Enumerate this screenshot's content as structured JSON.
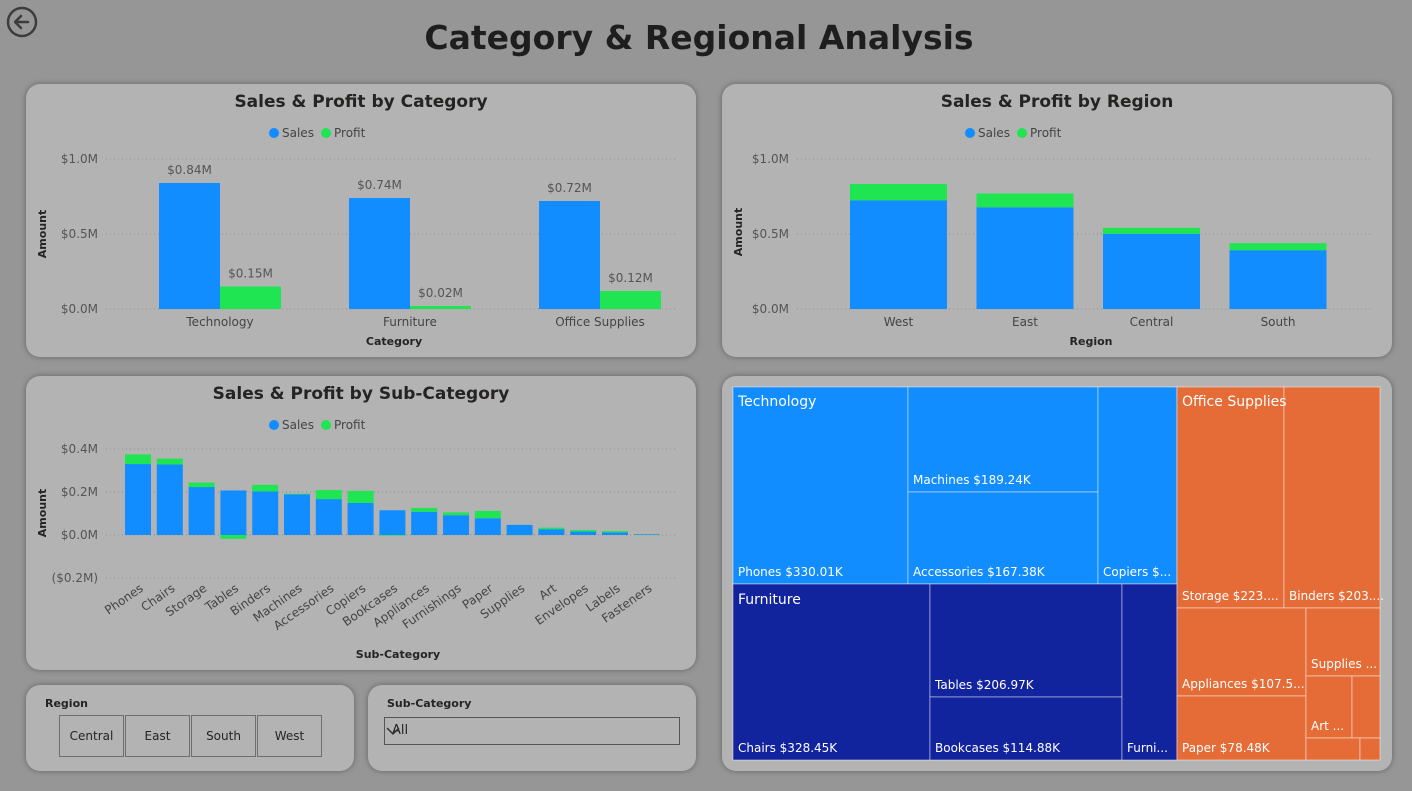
{
  "page": {
    "title": "Category & Regional Analysis"
  },
  "icons": {
    "back": "back-arrow-icon",
    "dropdown": "chevron-down-icon"
  },
  "colors": {
    "sales": "#118dff",
    "profit": "#1fe553",
    "technology": "#118dff",
    "furniture": "#12239e",
    "office_supplies": "#e66c37"
  },
  "legend": {
    "sales": "Sales",
    "profit": "Profit"
  },
  "category_chart": {
    "title": "Sales & Profit by Category",
    "xlabel": "Category",
    "ylabel": "Amount",
    "yticks": [
      "$1.0M",
      "$0.5M",
      "$0.0M"
    ]
  },
  "region_chart": {
    "title": "Sales & Profit by Region",
    "xlabel": "Region",
    "ylabel": "Amount",
    "yticks": [
      "$1.0M",
      "$0.5M",
      "$0.0M"
    ]
  },
  "subcategory_chart": {
    "title": "Sales & Profit by Sub-Category",
    "xlabel": "Sub-Category",
    "ylabel": "Amount",
    "yticks": [
      "$0.4M",
      "$0.2M",
      "$0.0M",
      "($0.2M)"
    ]
  },
  "region_slicer": {
    "title": "Region",
    "options": [
      "Central",
      "East",
      "South",
      "West"
    ]
  },
  "subcategory_slicer": {
    "title": "Sub-Category",
    "value": "All"
  },
  "chart_data": [
    {
      "type": "bar",
      "title": "Sales & Profit by Category",
      "categories": [
        "Technology",
        "Furniture",
        "Office Supplies"
      ],
      "series": [
        {
          "name": "Sales",
          "values": [
            0.84,
            0.74,
            0.72
          ],
          "labels": [
            "$0.84M",
            "$0.74M",
            "$0.72M"
          ]
        },
        {
          "name": "Profit",
          "values": [
            0.15,
            0.02,
            0.12
          ],
          "labels": [
            "$0.15M",
            "$0.02M",
            "$0.12M"
          ]
        }
      ],
      "xlabel": "Category",
      "ylabel": "Amount",
      "ylim": [
        0,
        1.0
      ],
      "unit": "M",
      "grid": true,
      "legend": "top-center"
    },
    {
      "type": "bar",
      "stacked": true,
      "title": "Sales & Profit by Region",
      "categories": [
        "West",
        "East",
        "Central",
        "South"
      ],
      "series": [
        {
          "name": "Sales",
          "values": [
            0.725,
            0.678,
            0.501,
            0.392
          ]
        },
        {
          "name": "Profit",
          "values": [
            0.108,
            0.092,
            0.04,
            0.047
          ]
        }
      ],
      "xlabel": "Region",
      "ylabel": "Amount",
      "ylim": [
        0,
        1.0
      ],
      "unit": "M",
      "grid": true,
      "legend": "top-center"
    },
    {
      "type": "bar",
      "stacked": true,
      "title": "Sales & Profit by Sub-Category",
      "categories": [
        "Phones",
        "Chairs",
        "Storage",
        "Tables",
        "Binders",
        "Machines",
        "Accessories",
        "Copiers",
        "Bookcases",
        "Appliances",
        "Furnishings",
        "Paper",
        "Supplies",
        "Art",
        "Envelopes",
        "Labels",
        "Fasteners"
      ],
      "series": [
        {
          "name": "Sales",
          "values": [
            0.33,
            0.328,
            0.223,
            0.207,
            0.203,
            0.189,
            0.167,
            0.149,
            0.115,
            0.108,
            0.092,
            0.078,
            0.047,
            0.027,
            0.016,
            0.012,
            0.003
          ]
        },
        {
          "name": "Profit",
          "values": [
            0.045,
            0.027,
            0.021,
            -0.018,
            0.03,
            0.003,
            0.042,
            0.056,
            -0.003,
            0.018,
            0.013,
            0.034,
            -0.001,
            0.007,
            0.007,
            0.006,
            0.001
          ]
        }
      ],
      "xlabel": "Sub-Category",
      "ylabel": "Amount",
      "ylim": [
        -0.2,
        0.4
      ],
      "unit": "M",
      "grid": true,
      "legend": "top-center"
    },
    {
      "type": "treemap",
      "groups": [
        {
          "name": "Technology",
          "items": [
            {
              "label": "Phones $330.01K",
              "value": 330.01
            },
            {
              "label": "Machines $189.24K",
              "value": 189.24
            },
            {
              "label": "Accessories $167.38K",
              "value": 167.38
            },
            {
              "label": "Copiers $...",
              "value": 149.53
            }
          ]
        },
        {
          "name": "Furniture",
          "items": [
            {
              "label": "Chairs $328.45K",
              "value": 328.45
            },
            {
              "label": "Tables $206.97K",
              "value": 206.97
            },
            {
              "label": "Bookcases $114.88K",
              "value": 114.88
            },
            {
              "label": "Furni...",
              "value": 91.71
            }
          ]
        },
        {
          "name": "Office Supplies",
          "items": [
            {
              "label": "Storage $223....",
              "value": 223.84
            },
            {
              "label": "Binders $203....",
              "value": 203.41
            },
            {
              "label": "Appliances $107.5...",
              "value": 107.53
            },
            {
              "label": "Paper $78.48K",
              "value": 78.48
            },
            {
              "label": "Supplies ...",
              "value": 46.67
            },
            {
              "label": "Art ...",
              "value": 27.12
            },
            {
              "label": "",
              "value": 16.48
            },
            {
              "label": "",
              "value": 12.49
            },
            {
              "label": "",
              "value": 3.02
            }
          ]
        }
      ]
    }
  ]
}
